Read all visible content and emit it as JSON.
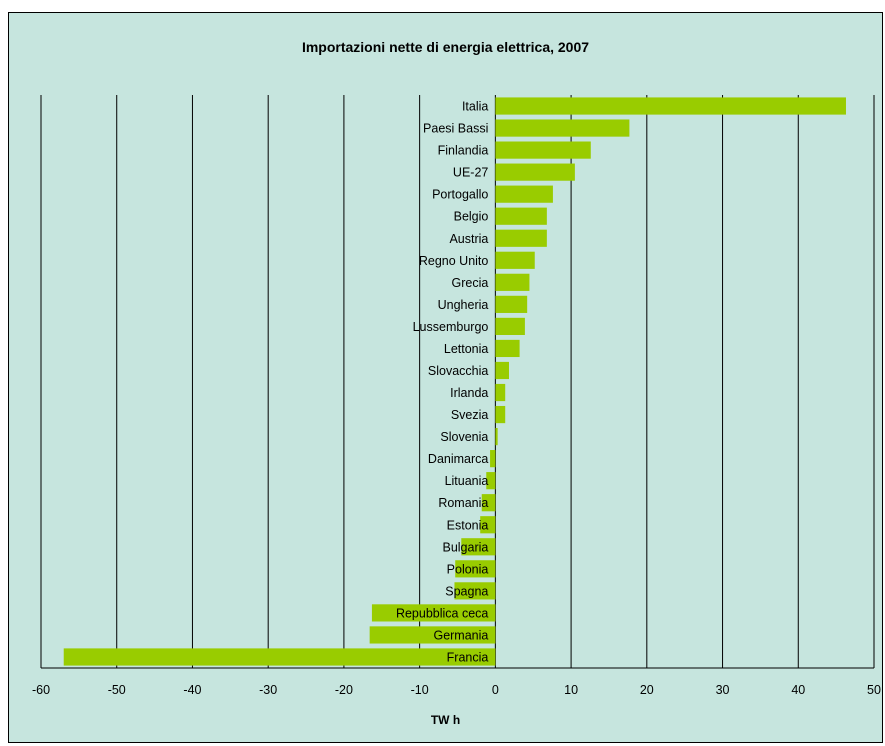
{
  "chart_data": {
    "type": "bar",
    "orientation": "horizontal",
    "title": "Importazioni nette di energia elettrica, 2007",
    "xlabel": "TW h",
    "ylabel": "",
    "xlim": [
      -60,
      50
    ],
    "xticks": [
      -60,
      -50,
      -40,
      -30,
      -20,
      -10,
      0,
      10,
      20,
      30,
      40,
      50
    ],
    "grid": "vertical",
    "categories": [
      "Italia",
      "Paesi Bassi",
      "Finlandia",
      "UE-27",
      "Portogallo",
      "Belgio",
      "Austria",
      "Regno Unito",
      "Grecia",
      "Ungheria",
      "Lussemburgo",
      "Lettonia",
      "Slovacchia",
      "Irlanda",
      "Svezia",
      "Slovenia",
      "Danimarca",
      "Lituania",
      "Romania",
      "Estonia",
      "Bulgaria",
      "Polonia",
      "Spagna",
      "Repubblica ceca",
      "Germania",
      "Francia"
    ],
    "values": [
      46.3,
      17.7,
      12.6,
      10.5,
      7.6,
      6.8,
      6.8,
      5.2,
      4.5,
      4.2,
      3.9,
      3.2,
      1.8,
      1.3,
      1.3,
      0.3,
      -0.7,
      -1.2,
      -1.8,
      -2.0,
      -4.5,
      -5.3,
      -5.4,
      -16.3,
      -16.6,
      -57.0
    ],
    "bar_color": "#99cc00",
    "grid_color": "#000000",
    "background_color": "#c6e5de"
  }
}
